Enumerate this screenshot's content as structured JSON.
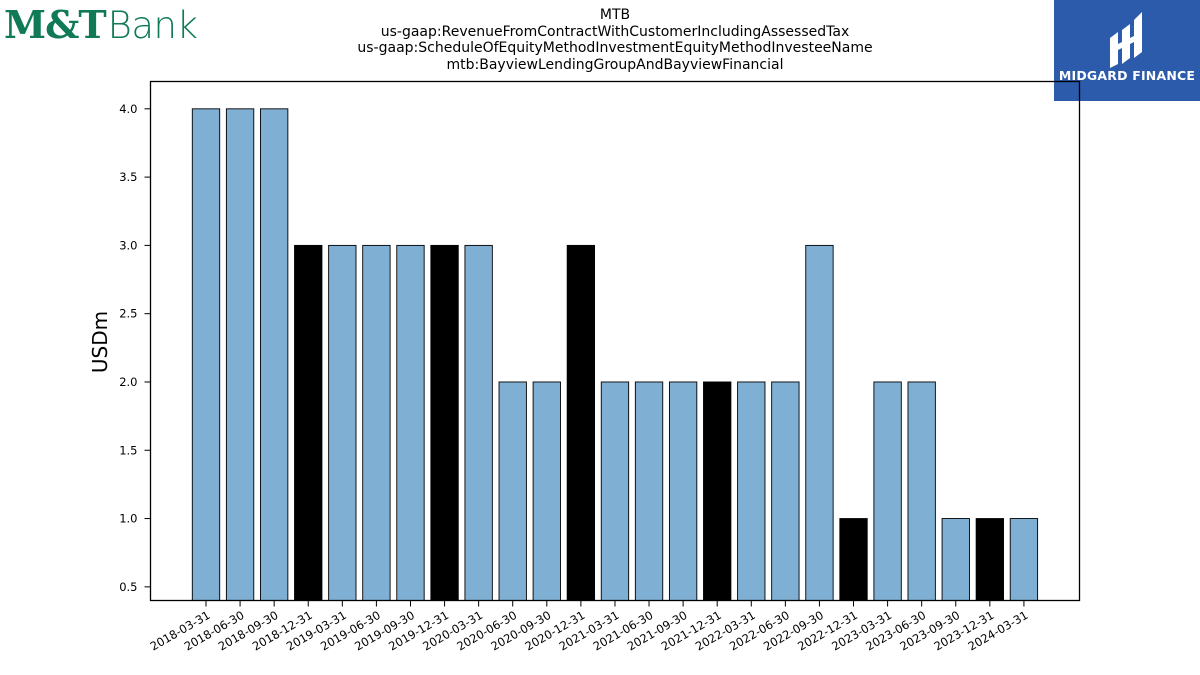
{
  "logos": {
    "left_brand_mt": "M&T",
    "left_brand_bank": "Bank",
    "right_brand": "MIDGARD FINANCE"
  },
  "chart_data": {
    "type": "bar",
    "title_lines": [
      "MTB",
      "us-gaap:RevenueFromContractWithCustomerIncludingAssessedTax",
      "us-gaap:ScheduleOfEquityMethodInvestmentEquityMethodInvesteeName",
      "mtb:BayviewLendingGroupAndBayviewFinancial"
    ],
    "ylabel": "USDm",
    "xlabel": "",
    "ylim": [
      0.4,
      4.2
    ],
    "yticks": [
      "0.5",
      "1.0",
      "1.5",
      "2.0",
      "2.5",
      "3.0",
      "3.5",
      "4.0"
    ],
    "categories": [
      "2018-03-31",
      "2018-06-30",
      "2018-09-30",
      "2018-12-31",
      "2019-03-31",
      "2019-06-30",
      "2019-09-30",
      "2019-12-31",
      "2020-03-31",
      "2020-06-30",
      "2020-09-30",
      "2020-12-31",
      "2021-03-31",
      "2021-06-30",
      "2021-09-30",
      "2021-12-31",
      "2022-03-31",
      "2022-06-30",
      "2022-09-30",
      "2022-12-31",
      "2023-03-31",
      "2023-06-30",
      "2023-09-30",
      "2023-12-31",
      "2024-03-31"
    ],
    "values": [
      4,
      4,
      4,
      3,
      3,
      3,
      3,
      3,
      3,
      2,
      2,
      3,
      2,
      2,
      2,
      2,
      2,
      2,
      3,
      1,
      2,
      2,
      1,
      1,
      1
    ],
    "year_end_highlight": [
      false,
      false,
      false,
      true,
      false,
      false,
      false,
      true,
      false,
      false,
      false,
      true,
      false,
      false,
      false,
      true,
      false,
      false,
      false,
      true,
      false,
      false,
      false,
      true,
      false
    ],
    "colors": {
      "bar": "#7fb0d4",
      "year_end_bar": "#000000",
      "bar_edge": "#000000"
    },
    "grid": false,
    "legend": "none"
  }
}
